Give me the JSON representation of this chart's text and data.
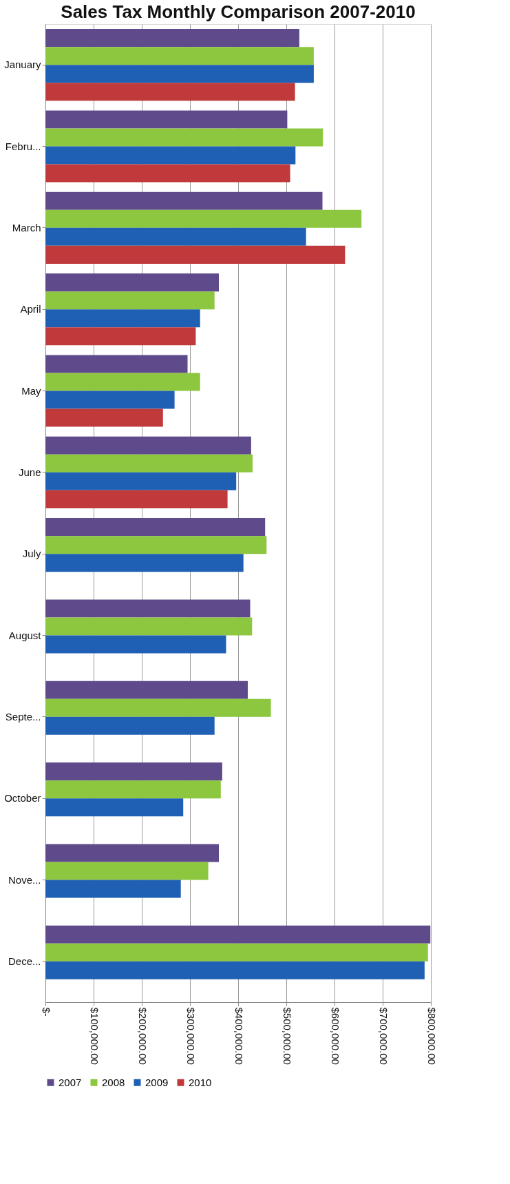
{
  "chart_data": {
    "type": "bar",
    "orientation": "horizontal",
    "title": "Sales Tax Monthly Comparison 2007-2010",
    "categories": [
      "January",
      "Febru...",
      "March",
      "April",
      "May",
      "June",
      "July",
      "August",
      "Septe...",
      "October",
      "Nove...",
      "Dece..."
    ],
    "series": [
      {
        "name": "2007",
        "color": "#5f4b8b",
        "values": [
          527000,
          502000,
          575000,
          360000,
          295000,
          427000,
          456000,
          425000,
          420000,
          367000,
          360000,
          799000
        ]
      },
      {
        "name": "2008",
        "color": "#8dc63f",
        "values": [
          557000,
          576000,
          656000,
          351000,
          321000,
          430000,
          459000,
          429000,
          468000,
          364000,
          338000,
          794000
        ]
      },
      {
        "name": "2009",
        "color": "#1f5fb4",
        "values": [
          557000,
          519000,
          541000,
          321000,
          268000,
          396000,
          411000,
          375000,
          351000,
          286000,
          281000,
          787000
        ]
      },
      {
        "name": "2010",
        "color": "#c0393b",
        "values": [
          518000,
          508000,
          622000,
          312000,
          244000,
          378000,
          null,
          null,
          null,
          null,
          null,
          null
        ]
      }
    ],
    "xlim": [
      0,
      800000
    ],
    "xticks": [
      {
        "value": 0,
        "label": "$-"
      },
      {
        "value": 100000,
        "label": "$100,000.00"
      },
      {
        "value": 200000,
        "label": "$200,000.00"
      },
      {
        "value": 300000,
        "label": "$300,000.00"
      },
      {
        "value": 400000,
        "label": "$400,000.00"
      },
      {
        "value": 500000,
        "label": "$500,000.00"
      },
      {
        "value": 600000,
        "label": "$600,000.00"
      },
      {
        "value": 700000,
        "label": "$700,000.00"
      },
      {
        "value": 800000,
        "label": "$800,000.00"
      }
    ],
    "grid": "x",
    "legend": "bottom"
  }
}
